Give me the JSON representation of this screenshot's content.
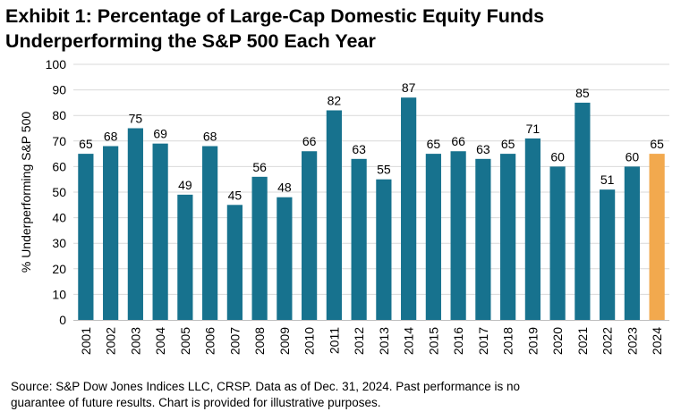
{
  "title_line1": "Exhibit 1: Percentage of Large-Cap Domestic Equity Funds",
  "title_line2": "Underperforming the S&P 500 Each Year",
  "source_line1": "Source: S&P Dow Jones Indices LLC, CRSP.  Data as of Dec. 31, 2024.  Past performance is no",
  "source_line2": "guarantee of future results.  Chart is provided for illustrative purposes.",
  "colors": {
    "bar": "#17728e",
    "highlight": "#f2a94e",
    "grid": "#d9d9d9"
  },
  "chart_data": {
    "type": "bar",
    "title": "Exhibit 1: Percentage of Large-Cap Domestic Equity Funds Underperforming the S&P 500 Each Year",
    "xlabel": "",
    "ylabel": "% Underperforming S&P 500",
    "ylim": [
      0,
      100
    ],
    "yticks": [
      0,
      10,
      20,
      30,
      40,
      50,
      60,
      70,
      80,
      90,
      100
    ],
    "grid": true,
    "categories": [
      "2001",
      "2002",
      "2003",
      "2004",
      "2005",
      "2006",
      "2007",
      "2008",
      "2009",
      "2010",
      "2011",
      "2012",
      "2013",
      "2014",
      "2015",
      "2016",
      "2017",
      "2018",
      "2019",
      "2020",
      "2021",
      "2022",
      "2023",
      "2024"
    ],
    "values": [
      65,
      68,
      75,
      69,
      49,
      68,
      45,
      56,
      48,
      66,
      82,
      63,
      55,
      87,
      65,
      66,
      63,
      65,
      71,
      60,
      85,
      51,
      60,
      65
    ],
    "highlight_category": "2024"
  }
}
